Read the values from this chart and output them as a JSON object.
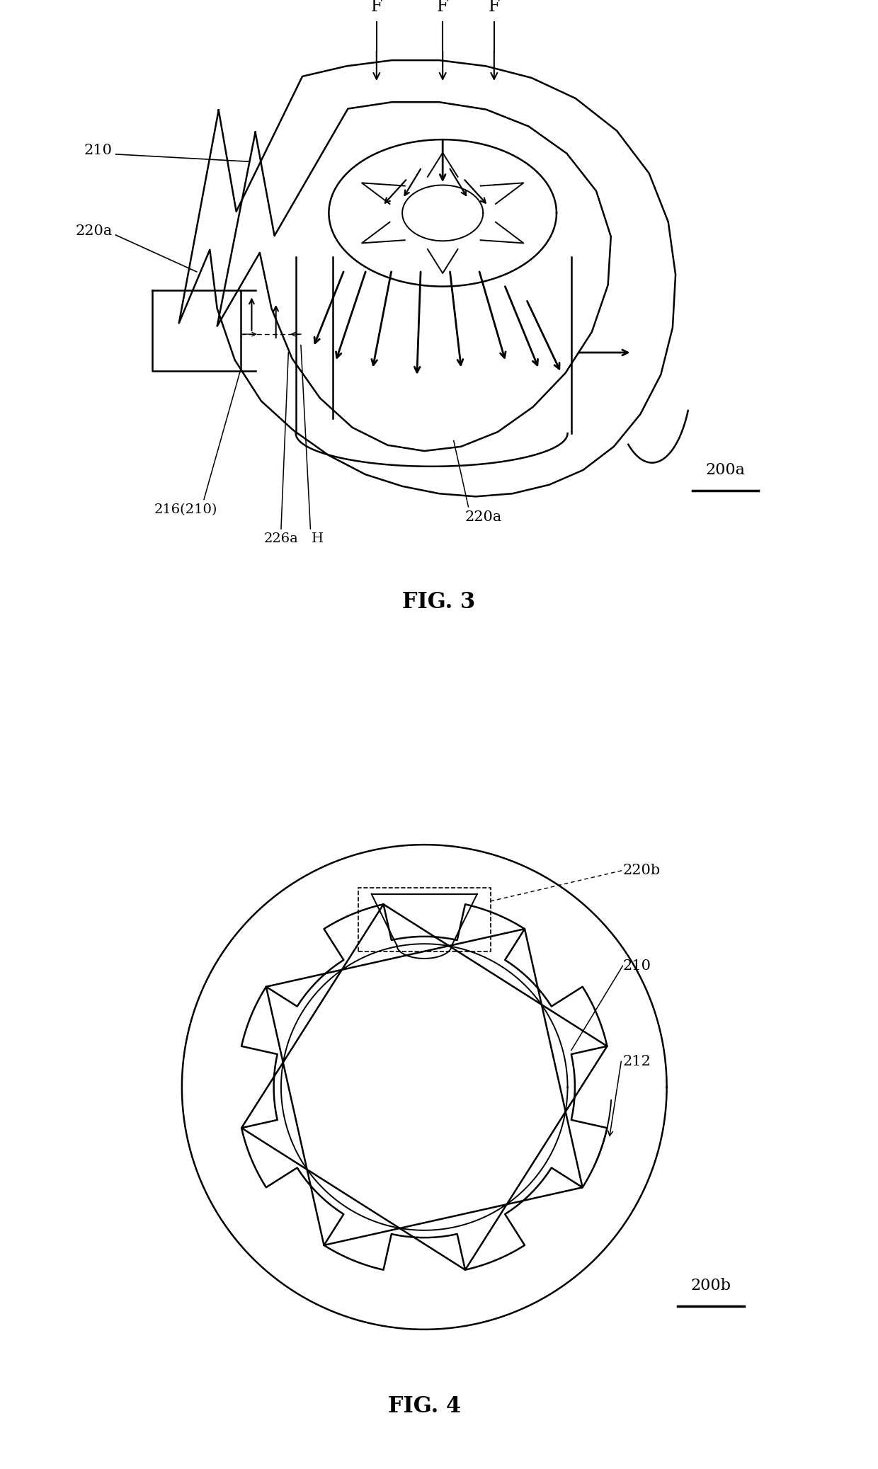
{
  "fig_width": 12.4,
  "fig_height": 20.75,
  "dpi": 100,
  "bg_color": "#ffffff",
  "label_210_fig3": "210",
  "label_220a_left": "220a",
  "label_220a_right": "220a",
  "label_216_210": "216(210)",
  "label_226a": "226a",
  "label_H": "H",
  "label_200a": "200a",
  "label_220b": "220b",
  "label_210_fig4": "210",
  "label_212": "212",
  "label_200b": "200b",
  "fig3_title": "FIG. 3",
  "fig4_title": "FIG. 4"
}
